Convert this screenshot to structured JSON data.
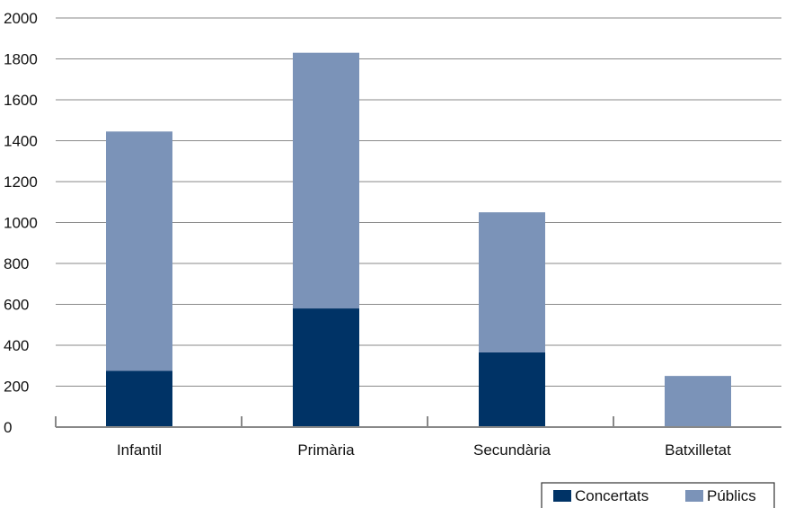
{
  "chart_data": {
    "type": "bar",
    "stacked": true,
    "categories": [
      "Infantil",
      "Primària",
      "Secundària",
      "Batxilletat"
    ],
    "series": [
      {
        "name": "Concertats",
        "values": [
          275,
          580,
          365,
          0
        ],
        "color": "#003366"
      },
      {
        "name": "Públics",
        "values": [
          1170,
          1250,
          685,
          250
        ],
        "color": "#7b93b8"
      }
    ],
    "ylim": [
      0,
      2000
    ],
    "yticks": [
      "0",
      "200",
      "400",
      "600",
      "800",
      "1000",
      "1200",
      "1400",
      "1600",
      "1800",
      "2000"
    ],
    "grid": true,
    "legend_position": "bottom-right",
    "title": "",
    "xlabel": "",
    "ylabel": ""
  },
  "legend": {
    "items": [
      {
        "label": "Concertats"
      },
      {
        "label": "Públics"
      }
    ]
  }
}
